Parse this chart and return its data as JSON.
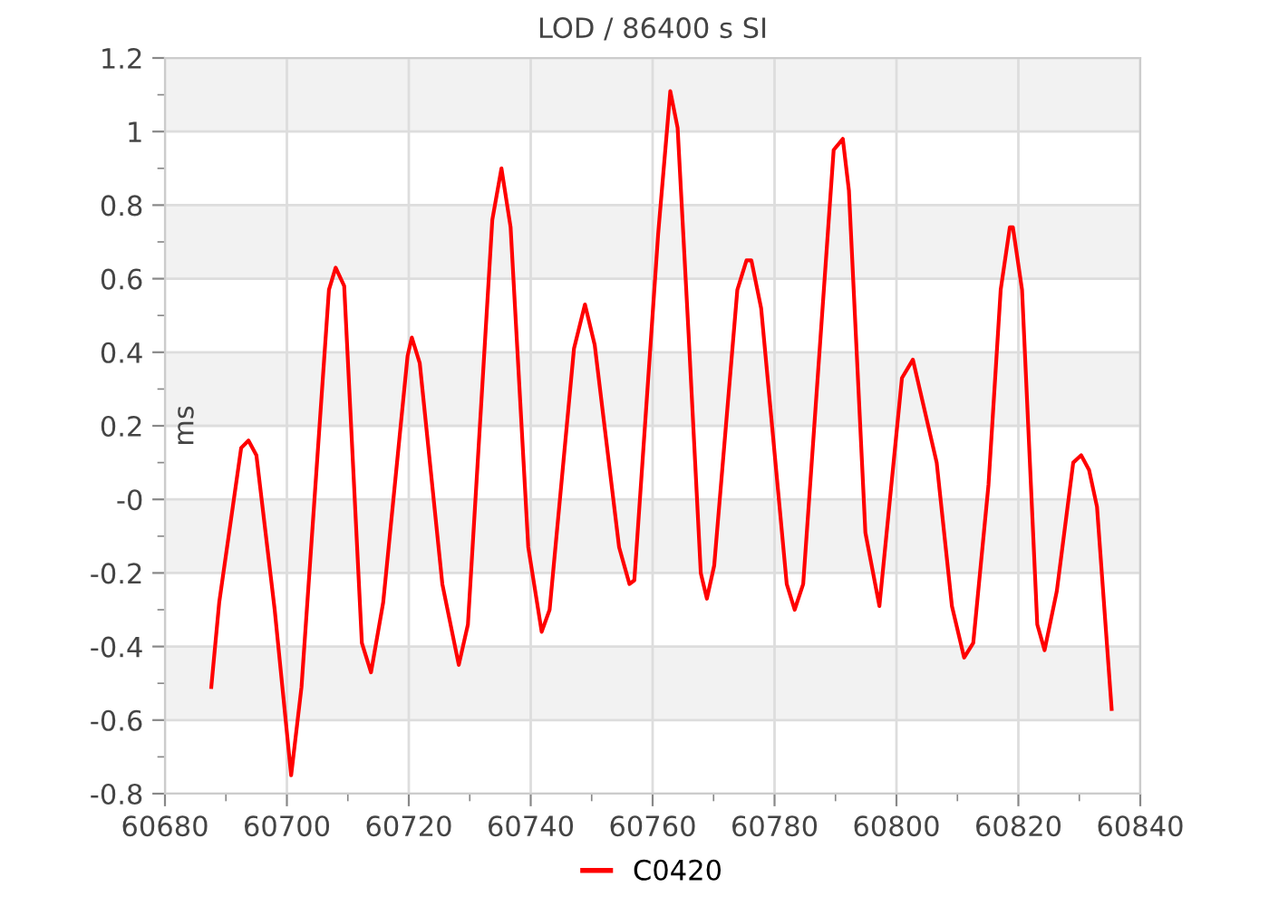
{
  "chart_data": {
    "type": "line",
    "title": "LOD / 86400 s SI",
    "ylabel": "ms",
    "x": [
      60687.6,
      60688.9,
      60692.5,
      60693.7,
      60695,
      60698,
      60700.7,
      60702.4,
      60706.9,
      60708,
      60709.4,
      60712.3,
      60713.8,
      60715.8,
      60719.8,
      60720.5,
      60721.8,
      60725.5,
      60728.2,
      60729.7,
      60733.7,
      60735.2,
      60736.7,
      60739.6,
      60741.8,
      60743.1,
      60747.1,
      60748.9,
      60750.5,
      60754.5,
      60756.2,
      60757,
      60760.9,
      60762.9,
      60764.1,
      60765.9,
      60767.9,
      60768.9,
      60770.1,
      60773.9,
      60775.4,
      60776.2,
      60777.8,
      60782,
      60783.3,
      60784.7,
      60789.7,
      60791.2,
      60792.2,
      60794.9,
      60797.2,
      60800.9,
      60802.7,
      60806.6,
      60809.1,
      60811.1,
      60812.6,
      60815.1,
      60817.1,
      60818.6,
      60819.1,
      60820.6,
      60823.1,
      60824.3,
      60826.3,
      60829,
      60830.3,
      60831.6,
      60832.9,
      60835.3
    ],
    "series": [
      {
        "name": "C0420",
        "color": "#ff0000",
        "values": [
          -0.51,
          -0.28,
          0.14,
          0.16,
          0.12,
          -0.3,
          -0.75,
          -0.51,
          0.57,
          0.63,
          0.58,
          -0.39,
          -0.47,
          -0.28,
          0.39,
          0.44,
          0.37,
          -0.23,
          -0.45,
          -0.34,
          0.76,
          0.9,
          0.74,
          -0.13,
          -0.36,
          -0.3,
          0.41,
          0.53,
          0.42,
          -0.13,
          -0.23,
          -0.22,
          0.72,
          1.11,
          1.01,
          0.45,
          -0.2,
          -0.27,
          -0.18,
          0.57,
          0.65,
          0.65,
          0.52,
          -0.23,
          -0.3,
          -0.23,
          0.95,
          0.98,
          0.84,
          -0.09,
          -0.29,
          0.33,
          0.38,
          0.1,
          -0.29,
          -0.43,
          -0.39,
          0.04,
          0.57,
          0.74,
          0.74,
          0.57,
          -0.34,
          -0.41,
          -0.25,
          0.1,
          0.12,
          0.08,
          -0.02,
          -0.57
        ]
      }
    ],
    "xlim": [
      60680,
      60840
    ],
    "xticks": [
      60680,
      60700,
      60720,
      60740,
      60760,
      60780,
      60800,
      60820,
      60840
    ],
    "ylim": [
      -0.8,
      1.2
    ],
    "yticks": [
      -0.8,
      -0.6,
      -0.4,
      -0.2,
      {
        "value": 0,
        "label": "-0"
      },
      0.2,
      0.4,
      0.6,
      0.8,
      1,
      1.2
    ],
    "bands": [
      {
        "axis": "y",
        "from": 1,
        "to": 1.2,
        "color": "#f2f2f2"
      },
      {
        "axis": "y",
        "from": 0.6,
        "to": 0.8,
        "color": "#f2f2f2"
      },
      {
        "axis": "y",
        "from": 0.2,
        "to": 0.4,
        "color": "#f2f2f2"
      },
      {
        "axis": "y",
        "from": -0.2,
        "to": 0,
        "color": "#f2f2f2"
      },
      {
        "axis": "y",
        "from": -0.6,
        "to": -0.4,
        "color": "#f2f2f2"
      }
    ],
    "grid": true,
    "legend": "bottom",
    "marker": "none",
    "line_style": "solid"
  }
}
